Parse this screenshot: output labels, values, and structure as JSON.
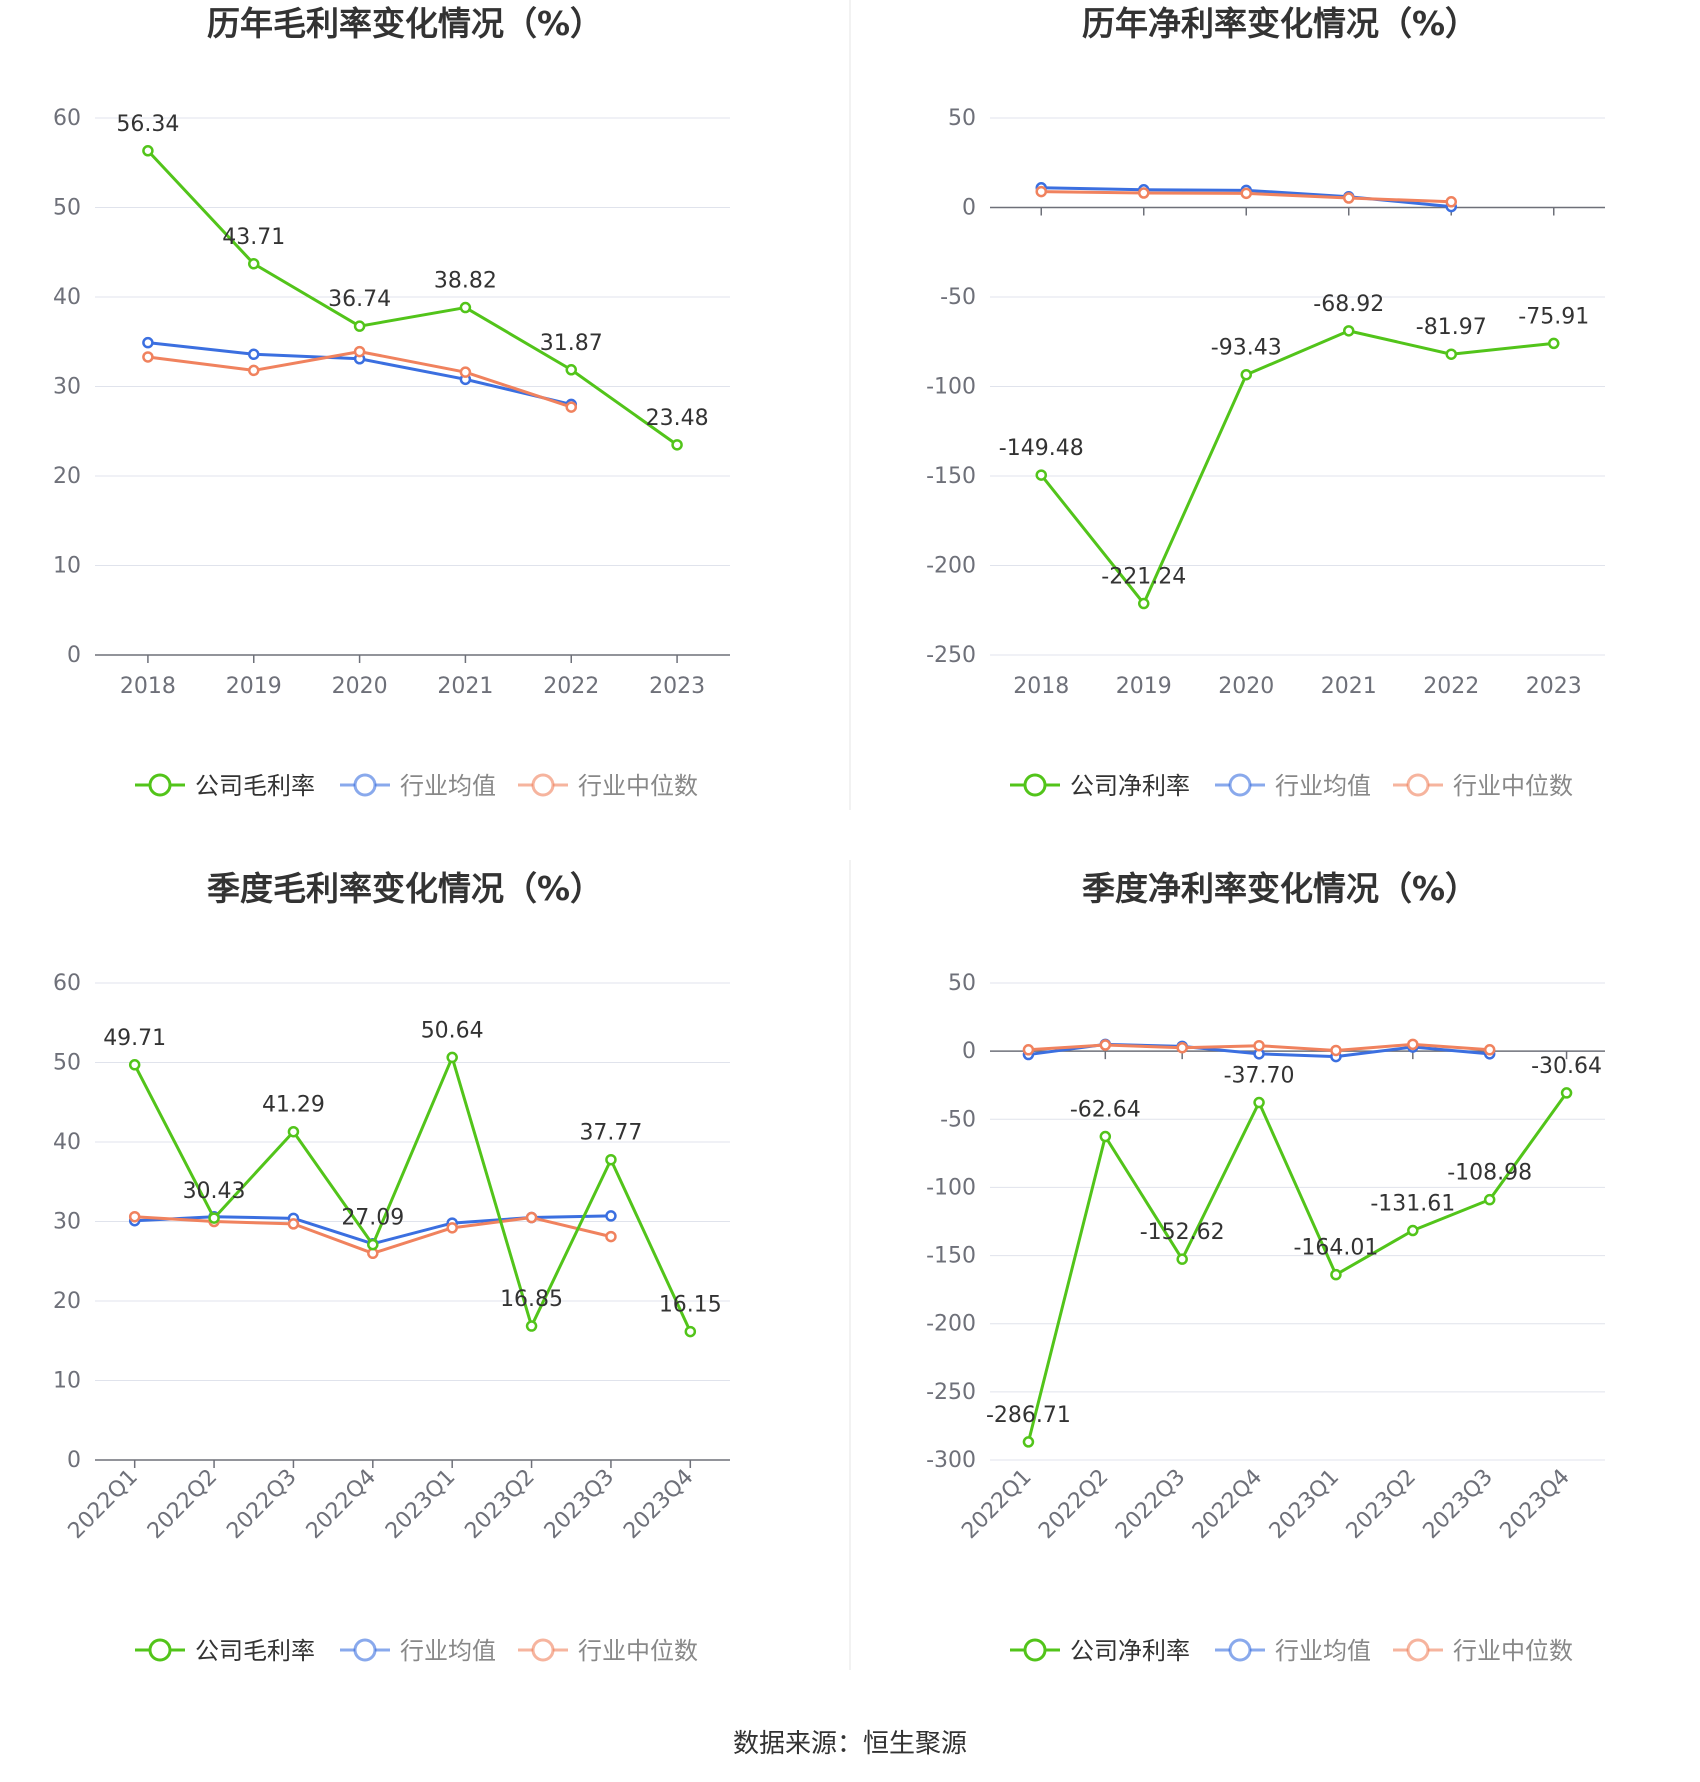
{
  "colors": {
    "company": "#52c41a",
    "avg": "#3b6fe0",
    "median": "#f0825e",
    "grid": "#e0e3ec",
    "axis": "#6e7079",
    "divider": "#e6e6e6"
  },
  "footer": {
    "source": "数据来源：恒生聚源"
  },
  "chart_data": [
    {
      "type": "line",
      "title": "历年毛利率变化情况（%）",
      "categories": [
        "2018",
        "2019",
        "2020",
        "2021",
        "2022",
        "2023"
      ],
      "ylim": [
        0,
        60
      ],
      "yticks": [
        0,
        10,
        20,
        30,
        40,
        50,
        60
      ],
      "tick_rotate": false,
      "grid": true,
      "legend_position": "bottom",
      "legend": [
        "公司毛利率",
        "行业均值",
        "行业中位数"
      ],
      "series": [
        {
          "name": "公司毛利率",
          "values": [
            56.34,
            43.71,
            36.74,
            38.82,
            31.87,
            23.48
          ],
          "labels": [
            "56.34",
            "43.71",
            "36.74",
            "38.82",
            "31.87",
            "23.48"
          ]
        },
        {
          "name": "行业均值",
          "values": [
            34.9,
            33.6,
            33.1,
            30.8,
            28.0,
            null
          ]
        },
        {
          "name": "行业中位数",
          "values": [
            33.3,
            31.8,
            33.9,
            31.6,
            27.7,
            null
          ]
        }
      ]
    },
    {
      "type": "line",
      "title": "历年净利率变化情况（%）",
      "categories": [
        "2018",
        "2019",
        "2020",
        "2021",
        "2022",
        "2023"
      ],
      "ylim": [
        -250,
        50
      ],
      "yticks": [
        -250,
        -200,
        -150,
        -100,
        -50,
        0,
        50
      ],
      "tick_rotate": false,
      "grid": true,
      "legend_position": "bottom",
      "legend": [
        "公司净利率",
        "行业均值",
        "行业中位数"
      ],
      "series": [
        {
          "name": "公司净利率",
          "values": [
            -149.48,
            -221.24,
            -93.43,
            -68.92,
            -81.97,
            -75.91
          ],
          "labels": [
            "-149.48",
            "-221.24",
            "-93.43",
            "-68.92",
            "-81.97",
            "-75.91"
          ]
        },
        {
          "name": "行业均值",
          "values": [
            11.0,
            9.9,
            9.6,
            6.0,
            0.5,
            null
          ]
        },
        {
          "name": "行业中位数",
          "values": [
            8.9,
            8.1,
            7.9,
            5.3,
            3.2,
            null
          ]
        }
      ]
    },
    {
      "type": "line",
      "title": "季度毛利率变化情况（%）",
      "categories": [
        "2022Q1",
        "2022Q2",
        "2022Q3",
        "2022Q4",
        "2023Q1",
        "2023Q2",
        "2023Q3",
        "2023Q4"
      ],
      "ylim": [
        0,
        60
      ],
      "yticks": [
        0,
        10,
        20,
        30,
        40,
        50,
        60
      ],
      "tick_rotate": true,
      "grid": true,
      "legend_position": "bottom",
      "legend": [
        "公司毛利率",
        "行业均值",
        "行业中位数"
      ],
      "series": [
        {
          "name": "公司毛利率",
          "values": [
            49.71,
            30.43,
            41.29,
            27.09,
            50.64,
            16.85,
            37.77,
            16.15
          ],
          "labels": [
            "49.71",
            "30.43",
            "41.29",
            "27.09",
            "50.64",
            "16.85",
            "37.77",
            "16.15"
          ]
        },
        {
          "name": "行业均值",
          "values": [
            30.1,
            30.6,
            30.4,
            27.2,
            29.8,
            30.5,
            30.7,
            null
          ]
        },
        {
          "name": "行业中位数",
          "values": [
            30.6,
            30.0,
            29.7,
            26.0,
            29.2,
            30.5,
            28.1,
            null
          ]
        }
      ]
    },
    {
      "type": "line",
      "title": "季度净利率变化情况（%）",
      "categories": [
        "2022Q1",
        "2022Q2",
        "2022Q3",
        "2022Q4",
        "2023Q1",
        "2023Q2",
        "2023Q3",
        "2023Q4"
      ],
      "ylim": [
        -300,
        50
      ],
      "yticks": [
        -300,
        -250,
        -200,
        -150,
        -100,
        -50,
        0,
        50
      ],
      "tick_rotate": true,
      "grid": true,
      "legend_position": "bottom",
      "legend": [
        "公司净利率",
        "行业均值",
        "行业中位数"
      ],
      "series": [
        {
          "name": "公司净利率",
          "values": [
            -286.71,
            -62.64,
            -152.62,
            -37.7,
            -164.01,
            -131.61,
            -108.98,
            -30.64
          ],
          "labels": [
            "-286.71",
            "-62.64",
            "-152.62",
            "-37.70",
            "-164.01",
            "-131.61",
            "-108.98",
            "-30.64"
          ]
        },
        {
          "name": "行业均值",
          "values": [
            -2.5,
            5.0,
            3.5,
            -2.0,
            -4.0,
            3.0,
            -2.0,
            null
          ]
        },
        {
          "name": "行业中位数",
          "values": [
            1.0,
            4.5,
            2.5,
            4.0,
            0.5,
            5.0,
            1.0,
            null
          ]
        }
      ]
    }
  ]
}
